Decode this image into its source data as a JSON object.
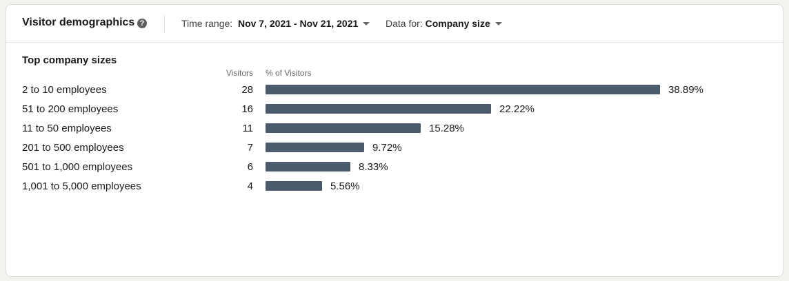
{
  "header": {
    "title": "Visitor demographics",
    "time_range_label": "Time range:",
    "time_range_value": "Nov 7, 2021 - Nov 21, 2021",
    "data_for_label": "Data for:",
    "data_for_value": "Company size"
  },
  "section": {
    "title": "Top company sizes",
    "col_visitors": "Visitors",
    "col_pct": "% of Visitors"
  },
  "colors": {
    "bar": "#4c5b6c"
  },
  "rows": [
    {
      "label": "2 to 10 employees",
      "visitors": "28",
      "pct": 38.89,
      "pct_text": "38.89%"
    },
    {
      "label": "51 to 200 employees",
      "visitors": "16",
      "pct": 22.22,
      "pct_text": "22.22%"
    },
    {
      "label": "11 to 50 employees",
      "visitors": "11",
      "pct": 15.28,
      "pct_text": "15.28%"
    },
    {
      "label": "201 to 500 employees",
      "visitors": "7",
      "pct": 9.72,
      "pct_text": "9.72%"
    },
    {
      "label": "501 to 1,000 employees",
      "visitors": "6",
      "pct": 8.33,
      "pct_text": "8.33%"
    },
    {
      "label": "1,001 to 5,000 employees",
      "visitors": "4",
      "pct": 5.56,
      "pct_text": "5.56%"
    }
  ]
}
